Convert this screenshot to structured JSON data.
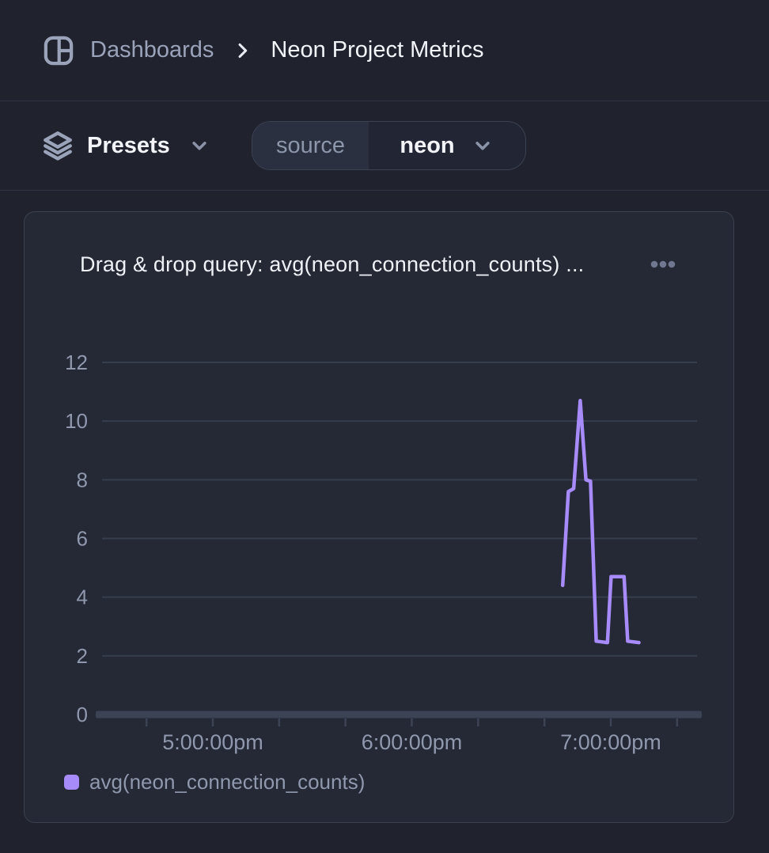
{
  "header": {
    "breadcrumb_root": "Dashboards",
    "title": "Neon Project Metrics"
  },
  "toolbar": {
    "presets_label": "Presets",
    "source_picker": {
      "label": "source",
      "value": "neon"
    }
  },
  "panel": {
    "title": "Drag & drop query: avg(neon_connection_counts) ..."
  },
  "icons": {
    "header_left": "dashboard-grid-icon",
    "breadcrumb_separator": "chevron-right-icon",
    "presets": "layers-icon",
    "presets_caret": "chevron-down-icon",
    "source_caret": "chevron-down-icon",
    "panel_menu": "ellipsis-icon",
    "legend_swatch": "series-color-swatch"
  },
  "colors": {
    "page_bg": "#20232e",
    "panel_bg": "#252935",
    "panel_border": "#3a4150",
    "divider": "#2e3444",
    "grid_line": "#363d4d",
    "axis_bar": "#3c4355",
    "text_primary": "#f2f4f8",
    "text_muted": "#8f98ad",
    "accent_purple": "#a78bfa"
  },
  "chart_data": {
    "type": "line",
    "title": "Drag & drop query: avg(neon_connection_counts) ...",
    "xlabel": "",
    "ylabel": "",
    "ylim": [
      0,
      12
    ],
    "y_ticks": [
      0,
      2,
      4,
      6,
      8,
      10,
      12
    ],
    "x_unit": "minutes_after_5:00pm",
    "x_range_min": [
      -35.3,
      147.5
    ],
    "x_ticks": [
      {
        "label": "5:00:00pm",
        "min": 0
      },
      {
        "label": "6:00:00pm",
        "min": 60
      },
      {
        "label": "7:00:00pm",
        "min": 120
      }
    ],
    "x_minor_ticks_min": [
      -20,
      0,
      20,
      40,
      60,
      80,
      100,
      120,
      140
    ],
    "grid": "horizontal-only",
    "legend_position": "bottom-left",
    "series": [
      {
        "name": "avg(neon_connection_counts)",
        "color": "#a78bfa",
        "points": [
          {
            "min": 105.5,
            "value": 4.4
          },
          {
            "min": 107.2,
            "value": 7.6
          },
          {
            "min": 108.8,
            "value": 7.7
          },
          {
            "min": 110.8,
            "value": 10.7
          },
          {
            "min": 112.5,
            "value": 8.0
          },
          {
            "min": 113.9,
            "value": 7.95
          },
          {
            "min": 115.6,
            "value": 2.5
          },
          {
            "min": 119.0,
            "value": 2.45
          },
          {
            "min": 120.1,
            "value": 4.7
          },
          {
            "min": 124.0,
            "value": 4.7
          },
          {
            "min": 125.1,
            "value": 2.5
          },
          {
            "min": 128.5,
            "value": 2.45
          }
        ]
      }
    ]
  }
}
